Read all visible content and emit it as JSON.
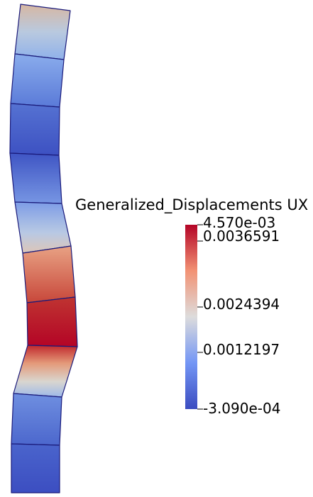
{
  "legend": {
    "title": "Generalized_Displacements UX",
    "max_label": "4.570e-03",
    "min_label": "-3.090e-04",
    "tick_labels": [
      "0.0036591",
      "0.0024394",
      "0.0012197"
    ],
    "range": [
      -0.000309,
      0.00457
    ]
  },
  "colormap": {
    "name": "cool-to-warm",
    "low": "#3b4cc0",
    "mid": "#dddcdc",
    "high": "#b40426"
  },
  "mesh": {
    "edge_color": "#1a1a7a",
    "element_count": 10
  }
}
